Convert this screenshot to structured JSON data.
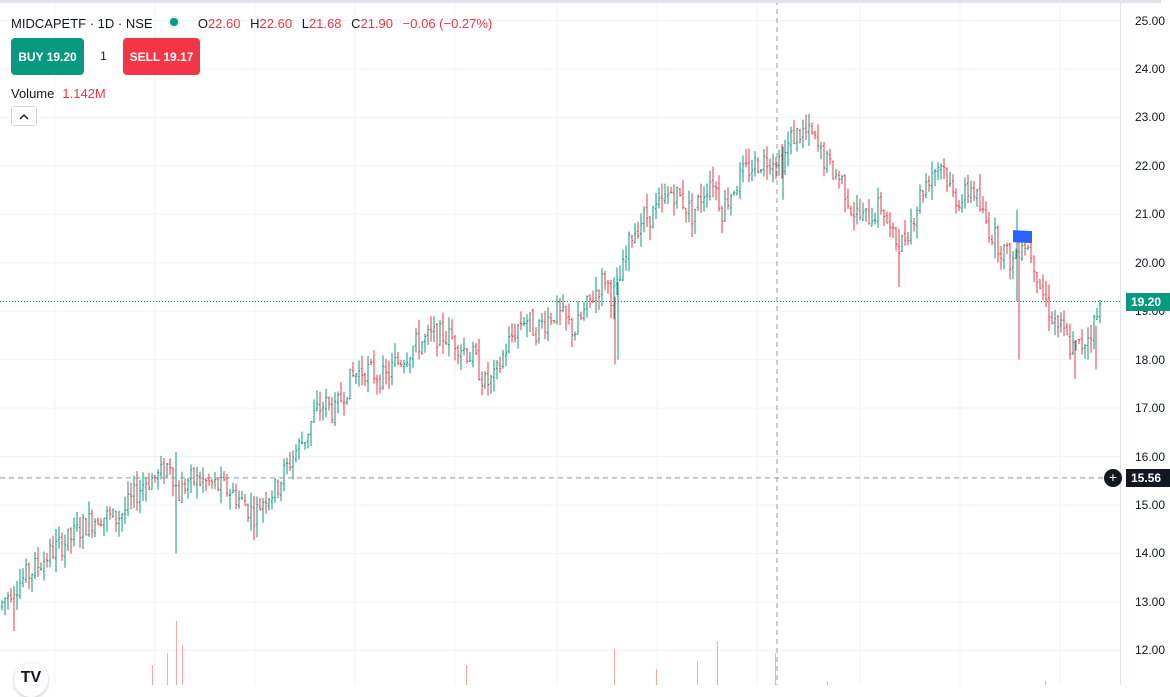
{
  "legend": {
    "symbol": "MIDCAPETF · 1D · NSE",
    "open_label": "O",
    "open": "22.60",
    "high_label": "H",
    "high": "22.60",
    "low_label": "L",
    "low": "21.68",
    "close_label": "C",
    "close": "21.90",
    "change": "−0.06 (−0.27%)"
  },
  "trade": {
    "buy_label": "BUY 19.20",
    "quantity": "1",
    "sell_label": "SELL 19.17"
  },
  "volume": {
    "label": "Volume",
    "value": "1.142M"
  },
  "axis": {
    "ticks": [
      "25.00",
      "24.00",
      "23.00",
      "22.00",
      "21.00",
      "20.00",
      "19.00",
      "18.00",
      "17.00",
      "16.00",
      "15.00",
      "14.00",
      "13.00",
      "12.00"
    ],
    "last_price": "19.20",
    "crosshair_price": "15.56"
  },
  "icons": {
    "collapse": "chevron-up-icon",
    "crosshair_add": "plus-circle-icon",
    "logo": "tradingview-logo"
  },
  "colors": {
    "up": "#089981",
    "down": "#f23645",
    "grid": "#f0f3fa",
    "crosshair": "#9598a1",
    "marker": "#2962ff"
  },
  "chart_data": {
    "type": "bar",
    "ylim": [
      11.75,
      25.0
    ],
    "last_price": 19.2,
    "crosshair_price": 15.56,
    "anchors": [
      [
        0,
        12.9
      ],
      [
        12,
        13.3
      ],
      [
        25,
        13.5
      ],
      [
        40,
        13.8
      ],
      [
        55,
        14.1
      ],
      [
        70,
        14.3
      ],
      [
        85,
        14.6
      ],
      [
        100,
        14.8
      ],
      [
        115,
        14.7
      ],
      [
        125,
        14.9
      ],
      [
        135,
        15.2
      ],
      [
        145,
        15.5
      ],
      [
        160,
        15.6
      ],
      [
        170,
        15.9
      ],
      [
        178,
        15.2
      ],
      [
        188,
        15.5
      ],
      [
        200,
        15.5
      ],
      [
        215,
        15.4
      ],
      [
        230,
        15.3
      ],
      [
        245,
        15.0
      ],
      [
        255,
        14.8
      ],
      [
        265,
        15.2
      ],
      [
        275,
        15.3
      ],
      [
        285,
        15.7
      ],
      [
        295,
        16.1
      ],
      [
        305,
        16.4
      ],
      [
        315,
        16.9
      ],
      [
        325,
        17.1
      ],
      [
        335,
        16.9
      ],
      [
        345,
        17.4
      ],
      [
        355,
        17.7
      ],
      [
        365,
        17.8
      ],
      [
        375,
        17.7
      ],
      [
        385,
        17.6
      ],
      [
        395,
        17.9
      ],
      [
        405,
        18.1
      ],
      [
        415,
        18.3
      ],
      [
        425,
        18.4
      ],
      [
        435,
        18.5
      ],
      [
        445,
        18.5
      ],
      [
        455,
        18.4
      ],
      [
        465,
        18.2
      ],
      [
        475,
        18.0
      ],
      [
        485,
        17.5
      ],
      [
        495,
        17.6
      ],
      [
        505,
        18.2
      ],
      [
        515,
        18.6
      ],
      [
        525,
        18.9
      ],
      [
        535,
        18.6
      ],
      [
        545,
        18.8
      ],
      [
        555,
        19.0
      ],
      [
        565,
        18.8
      ],
      [
        575,
        18.6
      ],
      [
        585,
        19.0
      ],
      [
        595,
        19.4
      ],
      [
        605,
        19.7
      ],
      [
        612,
        19.3
      ],
      [
        618,
        19.5
      ],
      [
        625,
        20.0
      ],
      [
        632,
        20.6
      ],
      [
        642,
        20.9
      ],
      [
        652,
        21.0
      ],
      [
        662,
        21.2
      ],
      [
        672,
        21.5
      ],
      [
        682,
        21.3
      ],
      [
        692,
        21.0
      ],
      [
        702,
        21.4
      ],
      [
        712,
        21.8
      ],
      [
        722,
        21.1
      ],
      [
        732,
        21.5
      ],
      [
        742,
        21.8
      ],
      [
        752,
        22.0
      ],
      [
        762,
        22.1
      ],
      [
        772,
        22.2
      ],
      [
        782,
        22.1
      ],
      [
        792,
        22.6
      ],
      [
        802,
        22.7
      ],
      [
        812,
        22.6
      ],
      [
        822,
        22.2
      ],
      [
        832,
        21.9
      ],
      [
        842,
        21.7
      ],
      [
        852,
        21.1
      ],
      [
        862,
        20.9
      ],
      [
        872,
        21.0
      ],
      [
        882,
        21.2
      ],
      [
        892,
        20.5
      ],
      [
        902,
        20.4
      ],
      [
        912,
        20.9
      ],
      [
        922,
        21.5
      ],
      [
        932,
        21.9
      ],
      [
        942,
        22.1
      ],
      [
        952,
        21.4
      ],
      [
        962,
        21.3
      ],
      [
        972,
        21.6
      ],
      [
        982,
        21.0
      ],
      [
        992,
        20.6
      ],
      [
        1002,
        20.3
      ],
      [
        1012,
        20.0
      ],
      [
        1022,
        20.5
      ],
      [
        1032,
        20.2
      ],
      [
        1042,
        19.4
      ],
      [
        1052,
        18.9
      ],
      [
        1062,
        18.6
      ],
      [
        1072,
        18.2
      ],
      [
        1082,
        18.3
      ],
      [
        1090,
        18.6
      ],
      [
        1096,
        18.8
      ],
      [
        1102,
        19.2
      ]
    ],
    "volume_spikes": [
      [
        152,
        0.25
      ],
      [
        167,
        0.4
      ],
      [
        176,
        0.8
      ],
      [
        182,
        0.5
      ],
      [
        466,
        0.25
      ],
      [
        614,
        0.45
      ],
      [
        656,
        0.2
      ],
      [
        697,
        0.3
      ],
      [
        717,
        0.55
      ],
      [
        775,
        0.4
      ],
      [
        827,
        0.05
      ],
      [
        1045,
        0.05
      ]
    ],
    "marker": {
      "x": 1022,
      "price": 20.55
    }
  }
}
